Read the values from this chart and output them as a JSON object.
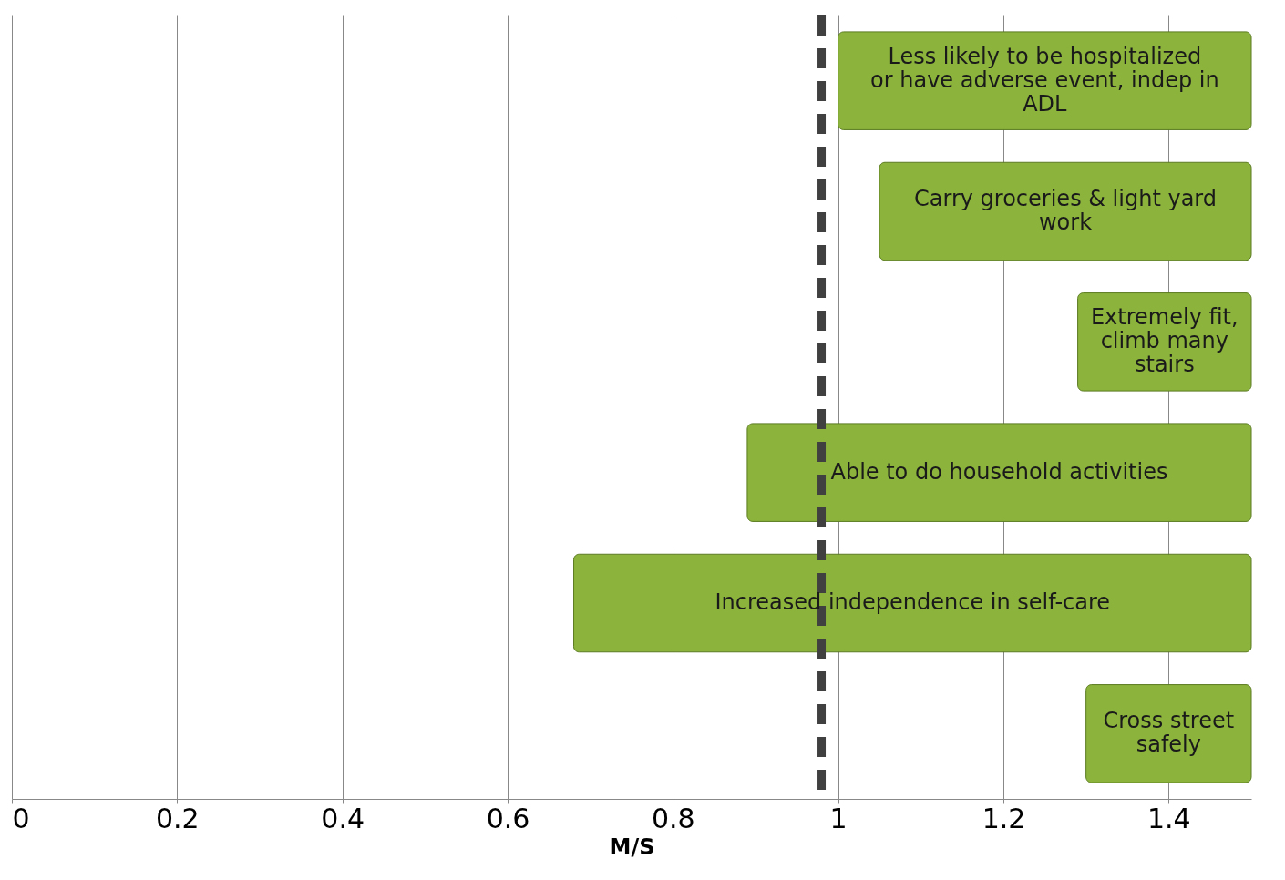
{
  "chart_data": {
    "type": "bar",
    "orientation": "horizontal",
    "xlabel": "M/S",
    "categories": [
      "Less likely to be hospitalized  or have adverse event, indep  in ADL",
      "Carry groceries & light yard work",
      "Extremely fit, climb many stairs",
      "Able to do household activities",
      "Increased independence in self-care",
      "Cross street safely"
    ],
    "base": [
      1.0,
      1.05,
      1.29,
      0.89,
      0.68,
      1.3
    ],
    "values": [
      0.5,
      0.45,
      0.21,
      0.61,
      0.82,
      0.2
    ],
    "color": "#8cb43c",
    "xlim": [
      0,
      1.5
    ],
    "xticks": [
      0,
      0.2,
      0.4,
      0.6,
      0.8,
      1,
      1.2,
      1.4
    ],
    "grid": "x",
    "tick_labels": "x",
    "ref_lines": [
      {
        "axis": "x",
        "value": 0.98,
        "color": "#404040",
        "line_style": "dashed"
      }
    ]
  }
}
